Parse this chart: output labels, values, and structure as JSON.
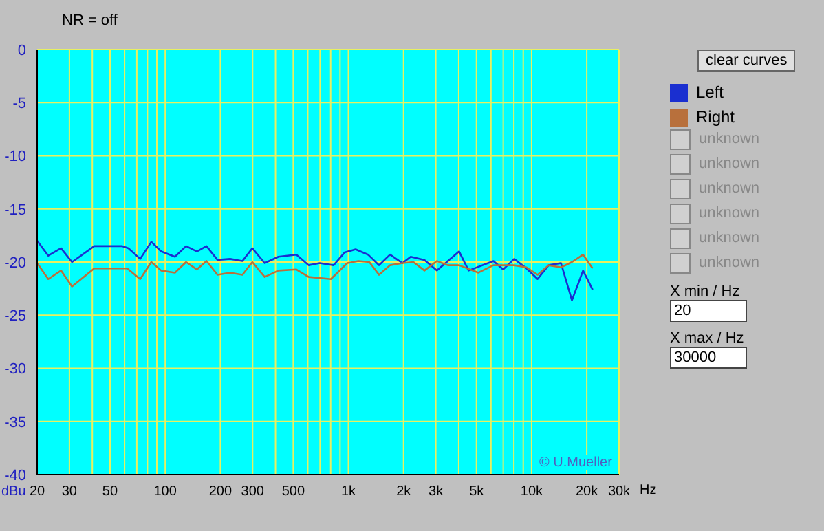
{
  "chart_data": {
    "type": "line",
    "ylabel": "dBu",
    "log": "x",
    "xlim": [
      20,
      30000
    ],
    "ylim": [
      -40,
      0
    ],
    "xticks": [
      20,
      30,
      {
        "value": 40,
        "label": null
      },
      50,
      {
        "value": 60,
        "label": null
      },
      {
        "value": 70,
        "label": null
      },
      {
        "value": 80,
        "label": null
      },
      {
        "value": 90,
        "label": null
      },
      100,
      200,
      300,
      {
        "value": 400,
        "label": null
      },
      500,
      {
        "value": 600,
        "label": null
      },
      {
        "value": 700,
        "label": null
      },
      {
        "value": 800,
        "label": null
      },
      {
        "value": 900,
        "label": null
      },
      {
        "value": 1000,
        "label": "1k"
      },
      {
        "value": 2000,
        "label": "2k"
      },
      {
        "value": 3000,
        "label": "3k"
      },
      {
        "value": 4000,
        "label": null
      },
      {
        "value": 5000,
        "label": "5k"
      },
      {
        "value": 6000,
        "label": null
      },
      {
        "value": 7000,
        "label": null
      },
      {
        "value": 8000,
        "label": null
      },
      {
        "value": 9000,
        "label": null
      },
      {
        "value": 10000,
        "label": "10k"
      },
      {
        "value": 20000,
        "label": "20k"
      },
      {
        "value": 30000,
        "label": "30k"
      }
    ],
    "xlabel": "Hz",
    "yticks": [
      0,
      -5,
      -10,
      -15,
      -20,
      -25,
      -30,
      -35,
      -40
    ],
    "grid": true,
    "legend": "right",
    "marker": "none",
    "line_style": "solid",
    "series": [
      {
        "name": "Left",
        "color": "#1a2fd0",
        "x": [
          20,
          23,
          27,
          31,
          41,
          58,
          63,
          73,
          84,
          95,
          113,
          130,
          149,
          168,
          193,
          226,
          264,
          299,
          349,
          415,
          520,
          607,
          697,
          830,
          953,
          1094,
          1280,
          1469,
          1687,
          1972,
          2188,
          2600,
          3040,
          4020,
          4530,
          6190,
          6990,
          8030,
          9380,
          10780,
          12380,
          14460,
          16600,
          19090,
          21530
        ],
        "values": [
          -18.0,
          -19.4,
          -18.7,
          -20.0,
          -18.5,
          -18.5,
          -18.7,
          -19.7,
          -18.1,
          -19.0,
          -19.5,
          -18.5,
          -19.0,
          -18.5,
          -19.8,
          -19.7,
          -19.9,
          -18.7,
          -20.1,
          -19.5,
          -19.3,
          -20.3,
          -20.1,
          -20.3,
          -19.1,
          -18.8,
          -19.3,
          -20.3,
          -19.3,
          -20.1,
          -19.5,
          -19.8,
          -20.8,
          -19.0,
          -20.8,
          -19.9,
          -20.7,
          -19.7,
          -20.6,
          -21.6,
          -20.3,
          -20.1,
          -23.6,
          -20.8,
          -22.6
        ]
      },
      {
        "name": "Right",
        "color": "#b8703c",
        "x": [
          20,
          23,
          27,
          31,
          41,
          62,
          73,
          84,
          95,
          113,
          130,
          149,
          168,
          193,
          226,
          264,
          299,
          349,
          415,
          520,
          607,
          802,
          986,
          1133,
          1301,
          1469,
          1687,
          1972,
          2265,
          2600,
          3040,
          3490,
          4020,
          5120,
          6190,
          8030,
          9380,
          10780,
          12380,
          14460,
          16600,
          19090,
          21530
        ],
        "values": [
          -20.1,
          -21.6,
          -20.8,
          -22.3,
          -20.6,
          -20.6,
          -21.6,
          -20.0,
          -20.8,
          -21.0,
          -20.0,
          -20.7,
          -19.9,
          -21.2,
          -21.0,
          -21.2,
          -20.0,
          -21.4,
          -20.8,
          -20.7,
          -21.4,
          -21.6,
          -20.1,
          -19.9,
          -20.0,
          -21.2,
          -20.3,
          -20.1,
          -20.0,
          -20.8,
          -19.9,
          -20.3,
          -20.3,
          -21.0,
          -20.3,
          -20.3,
          -20.5,
          -21.2,
          -20.3,
          -20.5,
          -20.0,
          -19.3,
          -20.6
        ]
      }
    ],
    "annotations": [
      "NR = off",
      "clear curves",
      "unknown",
      "unknown",
      "unknown",
      "unknown",
      "unknown",
      "unknown",
      "X min / Hz",
      "20",
      "X max / Hz",
      "30000",
      "© U.Mueller"
    ]
  }
}
